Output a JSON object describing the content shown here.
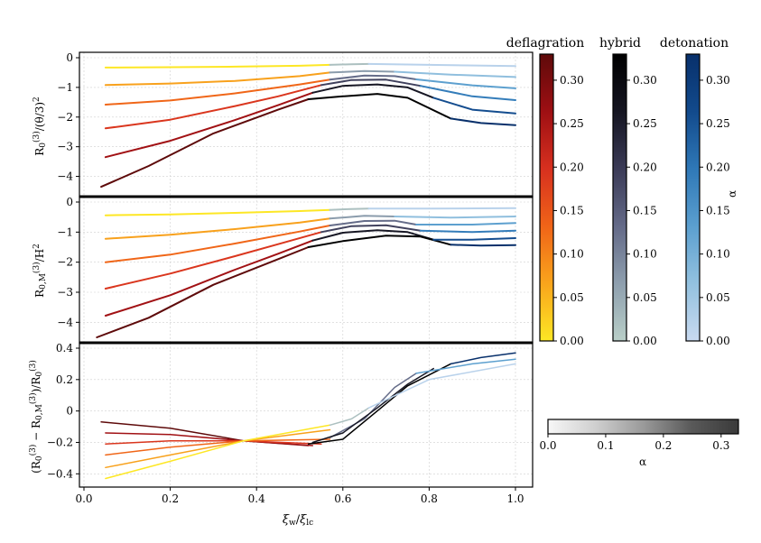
{
  "chart_data": [
    {
      "type": "line",
      "panel": "top",
      "ylabel": "R_0^(3)/(θ/3)^2",
      "xlim": [
        0.0,
        1.0
      ],
      "ylim": [
        -4.5,
        0.0
      ],
      "yticks": [
        0,
        -1,
        -2,
        -3,
        -4
      ],
      "grid": true,
      "series": [
        {
          "regime": "deflagration",
          "alpha": 0.0,
          "x": [
            0.05,
            0.2,
            0.35,
            0.5,
            0.57
          ],
          "y": [
            -0.33,
            -0.32,
            -0.3,
            -0.27,
            -0.24
          ]
        },
        {
          "regime": "deflagration",
          "alpha": 0.07,
          "x": [
            0.05,
            0.2,
            0.35,
            0.5,
            0.57
          ],
          "y": [
            -0.92,
            -0.87,
            -0.78,
            -0.62,
            -0.5
          ]
        },
        {
          "regime": "deflagration",
          "alpha": 0.13,
          "x": [
            0.05,
            0.2,
            0.35,
            0.5,
            0.57
          ],
          "y": [
            -1.58,
            -1.44,
            -1.2,
            -0.9,
            -0.74
          ]
        },
        {
          "regime": "deflagration",
          "alpha": 0.19,
          "x": [
            0.05,
            0.2,
            0.35,
            0.45,
            0.55
          ],
          "y": [
            -2.38,
            -2.09,
            -1.63,
            -1.3,
            -0.92
          ]
        },
        {
          "regime": "deflagration",
          "alpha": 0.26,
          "x": [
            0.05,
            0.2,
            0.35,
            0.45,
            0.53
          ],
          "y": [
            -3.35,
            -2.8,
            -2.1,
            -1.6,
            -1.18
          ]
        },
        {
          "regime": "deflagration",
          "alpha": 0.33,
          "x": [
            0.04,
            0.15,
            0.3,
            0.45,
            0.52
          ],
          "y": [
            -4.35,
            -3.65,
            -2.55,
            -1.75,
            -1.4
          ]
        },
        {
          "regime": "hybrid",
          "alpha": 0.02,
          "x": [
            0.57,
            0.62,
            0.66
          ],
          "y": [
            -0.24,
            -0.22,
            -0.21
          ]
        },
        {
          "regime": "hybrid",
          "alpha": 0.07,
          "x": [
            0.57,
            0.65,
            0.72
          ],
          "y": [
            -0.5,
            -0.45,
            -0.47
          ]
        },
        {
          "regime": "hybrid",
          "alpha": 0.13,
          "x": [
            0.57,
            0.65,
            0.72,
            0.77
          ],
          "y": [
            -0.74,
            -0.6,
            -0.62,
            -0.73
          ]
        },
        {
          "regime": "hybrid",
          "alpha": 0.19,
          "x": [
            0.55,
            0.62,
            0.7,
            0.78
          ],
          "y": [
            -0.92,
            -0.75,
            -0.74,
            -0.95
          ]
        },
        {
          "regime": "hybrid",
          "alpha": 0.26,
          "x": [
            0.53,
            0.6,
            0.68,
            0.75,
            0.81
          ],
          "y": [
            -1.18,
            -0.95,
            -0.9,
            -1.0,
            -1.35
          ]
        },
        {
          "regime": "hybrid",
          "alpha": 0.33,
          "x": [
            0.52,
            0.6,
            0.68,
            0.75,
            0.85
          ],
          "y": [
            -1.4,
            -1.3,
            -1.22,
            -1.35,
            -2.05
          ]
        },
        {
          "regime": "detonation",
          "alpha": 0.02,
          "x": [
            0.66,
            0.8,
            1.0
          ],
          "y": [
            -0.21,
            -0.24,
            -0.28
          ]
        },
        {
          "regime": "detonation",
          "alpha": 0.07,
          "x": [
            0.72,
            0.85,
            1.0
          ],
          "y": [
            -0.47,
            -0.57,
            -0.65
          ]
        },
        {
          "regime": "detonation",
          "alpha": 0.13,
          "x": [
            0.77,
            0.9,
            1.0
          ],
          "y": [
            -0.73,
            -0.93,
            -1.03
          ]
        },
        {
          "regime": "detonation",
          "alpha": 0.19,
          "x": [
            0.78,
            0.9,
            1.0
          ],
          "y": [
            -0.95,
            -1.3,
            -1.43
          ]
        },
        {
          "regime": "detonation",
          "alpha": 0.26,
          "x": [
            0.81,
            0.9,
            1.0
          ],
          "y": [
            -1.35,
            -1.75,
            -1.88
          ]
        },
        {
          "regime": "detonation",
          "alpha": 0.33,
          "x": [
            0.85,
            0.92,
            1.0
          ],
          "y": [
            -2.05,
            -2.2,
            -2.27
          ]
        }
      ]
    },
    {
      "type": "line",
      "panel": "middle",
      "ylabel": "R_0,M^(3)/H^2",
      "xlim": [
        0.0,
        1.0
      ],
      "ylim": [
        -4.5,
        0.0
      ],
      "yticks": [
        0,
        -1,
        -2,
        -3,
        -4
      ],
      "grid": true,
      "series": [
        {
          "regime": "deflagration",
          "alpha": 0.0,
          "x": [
            0.05,
            0.2,
            0.35,
            0.5,
            0.57
          ],
          "y": [
            -0.44,
            -0.41,
            -0.36,
            -0.3,
            -0.26
          ]
        },
        {
          "regime": "deflagration",
          "alpha": 0.07,
          "x": [
            0.05,
            0.2,
            0.35,
            0.5,
            0.57
          ],
          "y": [
            -1.22,
            -1.09,
            -0.9,
            -0.68,
            -0.55
          ]
        },
        {
          "regime": "deflagration",
          "alpha": 0.13,
          "x": [
            0.05,
            0.2,
            0.35,
            0.5,
            0.57
          ],
          "y": [
            -2.0,
            -1.75,
            -1.38,
            -0.98,
            -0.78
          ]
        },
        {
          "regime": "deflagration",
          "alpha": 0.19,
          "x": [
            0.05,
            0.2,
            0.35,
            0.45,
            0.55
          ],
          "y": [
            -2.88,
            -2.38,
            -1.8,
            -1.4,
            -1.0
          ]
        },
        {
          "regime": "deflagration",
          "alpha": 0.26,
          "x": [
            0.05,
            0.2,
            0.35,
            0.45,
            0.53
          ],
          "y": [
            -3.78,
            -3.1,
            -2.25,
            -1.72,
            -1.28
          ]
        },
        {
          "regime": "deflagration",
          "alpha": 0.33,
          "x": [
            0.03,
            0.15,
            0.3,
            0.45,
            0.52
          ],
          "y": [
            -4.5,
            -3.85,
            -2.75,
            -1.9,
            -1.5
          ]
        },
        {
          "regime": "hybrid",
          "alpha": 0.02,
          "x": [
            0.57,
            0.62,
            0.66
          ],
          "y": [
            -0.26,
            -0.23,
            -0.22
          ]
        },
        {
          "regime": "hybrid",
          "alpha": 0.07,
          "x": [
            0.57,
            0.65,
            0.72
          ],
          "y": [
            -0.55,
            -0.46,
            -0.48
          ]
        },
        {
          "regime": "hybrid",
          "alpha": 0.13,
          "x": [
            0.57,
            0.65,
            0.72,
            0.77
          ],
          "y": [
            -0.78,
            -0.63,
            -0.62,
            -0.75
          ]
        },
        {
          "regime": "hybrid",
          "alpha": 0.19,
          "x": [
            0.55,
            0.62,
            0.7,
            0.78
          ],
          "y": [
            -1.0,
            -0.8,
            -0.77,
            -0.95
          ]
        },
        {
          "regime": "hybrid",
          "alpha": 0.26,
          "x": [
            0.53,
            0.6,
            0.68,
            0.75,
            0.81
          ],
          "y": [
            -1.28,
            -1.02,
            -0.94,
            -1.0,
            -1.25
          ]
        },
        {
          "regime": "hybrid",
          "alpha": 0.33,
          "x": [
            0.52,
            0.6,
            0.7,
            0.78,
            0.85
          ],
          "y": [
            -1.5,
            -1.3,
            -1.12,
            -1.15,
            -1.42
          ]
        },
        {
          "regime": "detonation",
          "alpha": 0.02,
          "x": [
            0.66,
            0.8,
            1.0
          ],
          "y": [
            -0.22,
            -0.22,
            -0.2
          ]
        },
        {
          "regime": "detonation",
          "alpha": 0.07,
          "x": [
            0.72,
            0.85,
            1.0
          ],
          "y": [
            -0.48,
            -0.52,
            -0.48
          ]
        },
        {
          "regime": "detonation",
          "alpha": 0.13,
          "x": [
            0.77,
            0.9,
            1.0
          ],
          "y": [
            -0.75,
            -0.75,
            -0.7
          ]
        },
        {
          "regime": "detonation",
          "alpha": 0.19,
          "x": [
            0.78,
            0.9,
            1.0
          ],
          "y": [
            -0.95,
            -1.0,
            -0.95
          ]
        },
        {
          "regime": "detonation",
          "alpha": 0.26,
          "x": [
            0.81,
            0.9,
            1.0
          ],
          "y": [
            -1.25,
            -1.25,
            -1.2
          ]
        },
        {
          "regime": "detonation",
          "alpha": 0.33,
          "x": [
            0.85,
            0.92,
            1.0
          ],
          "y": [
            -1.42,
            -1.45,
            -1.43
          ]
        }
      ]
    },
    {
      "type": "line",
      "panel": "bottom",
      "ylabel": "(R_0^(3) - R_0,M^(3))/R_0^(3)",
      "xlabel": "ξ_w/ξ_lc",
      "xlim": [
        0.0,
        1.0
      ],
      "ylim": [
        -0.45,
        0.4
      ],
      "yticks": [
        0.4,
        0.2,
        0.0,
        -0.2,
        -0.4
      ],
      "xticks": [
        0.0,
        0.2,
        0.4,
        0.6,
        0.8,
        1.0
      ],
      "grid": true,
      "series": [
        {
          "regime": "deflagration",
          "alpha": 0.33,
          "x": [
            0.04,
            0.2,
            0.37,
            0.52
          ],
          "y": [
            -0.07,
            -0.11,
            -0.19,
            -0.22
          ]
        },
        {
          "regime": "deflagration",
          "alpha": 0.26,
          "x": [
            0.05,
            0.2,
            0.37,
            0.53
          ],
          "y": [
            -0.14,
            -0.15,
            -0.19,
            -0.22
          ]
        },
        {
          "regime": "deflagration",
          "alpha": 0.19,
          "x": [
            0.05,
            0.2,
            0.37,
            0.55
          ],
          "y": [
            -0.21,
            -0.19,
            -0.19,
            -0.21
          ]
        },
        {
          "regime": "deflagration",
          "alpha": 0.13,
          "x": [
            0.05,
            0.2,
            0.37,
            0.57
          ],
          "y": [
            -0.28,
            -0.23,
            -0.19,
            -0.18
          ]
        },
        {
          "regime": "deflagration",
          "alpha": 0.07,
          "x": [
            0.05,
            0.2,
            0.37,
            0.57
          ],
          "y": [
            -0.36,
            -0.28,
            -0.19,
            -0.12
          ]
        },
        {
          "regime": "deflagration",
          "alpha": 0.0,
          "x": [
            0.05,
            0.2,
            0.37,
            0.57
          ],
          "y": [
            -0.43,
            -0.32,
            -0.19,
            -0.09
          ]
        },
        {
          "regime": "hybrid",
          "alpha": 0.02,
          "x": [
            0.57,
            0.62,
            0.66
          ],
          "y": [
            -0.09,
            -0.05,
            0.02
          ]
        },
        {
          "regime": "hybrid",
          "alpha": 0.13,
          "x": [
            0.57,
            0.65,
            0.72,
            0.77
          ],
          "y": [
            -0.17,
            -0.05,
            0.15,
            0.24
          ]
        },
        {
          "regime": "hybrid",
          "alpha": 0.26,
          "x": [
            0.53,
            0.6,
            0.68,
            0.75,
            0.81
          ],
          "y": [
            -0.2,
            -0.14,
            0.02,
            0.17,
            0.27
          ]
        },
        {
          "regime": "hybrid",
          "alpha": 0.33,
          "x": [
            0.52,
            0.6,
            0.68,
            0.75,
            0.85
          ],
          "y": [
            -0.21,
            -0.18,
            0.0,
            0.16,
            0.3
          ]
        },
        {
          "regime": "detonation",
          "alpha": 0.02,
          "x": [
            0.66,
            0.8,
            1.0
          ],
          "y": [
            0.02,
            0.2,
            0.3
          ]
        },
        {
          "regime": "detonation",
          "alpha": 0.13,
          "x": [
            0.77,
            0.9,
            1.0
          ],
          "y": [
            0.24,
            0.3,
            0.33
          ]
        },
        {
          "regime": "detonation",
          "alpha": 0.33,
          "x": [
            0.85,
            0.92,
            1.0
          ],
          "y": [
            0.3,
            0.34,
            0.37
          ]
        }
      ]
    }
  ],
  "colorbars": {
    "deflagration": {
      "label": "deflagration",
      "ticks": [
        "0.30",
        "0.25",
        "0.20",
        "0.15",
        "0.10",
        "0.05",
        "0.00"
      ],
      "stops": [
        "#fde725",
        "#f9a51c",
        "#f06418",
        "#d7301f",
        "#9e0f13",
        "#5e0a0a"
      ]
    },
    "hybrid": {
      "label": "hybrid",
      "ticks": [
        "0.30",
        "0.25",
        "0.20",
        "0.15",
        "0.10",
        "0.05",
        "0.00"
      ],
      "stops": [
        "#b9cfc8",
        "#8e9fae",
        "#646a88",
        "#3b3b57",
        "#151521",
        "#000000"
      ]
    },
    "detonation": {
      "label": "detonation",
      "ticks": [
        "0.30",
        "0.25",
        "0.20",
        "0.15",
        "0.10",
        "0.05",
        "0.00"
      ],
      "stops": [
        "#c9daf0",
        "#93c1df",
        "#5b9fcf",
        "#2f78b7",
        "#124a8c",
        "#08306b"
      ]
    },
    "alpha": {
      "label": "α",
      "ticks": [
        "0.0",
        "0.1",
        "0.2",
        "0.3"
      ],
      "stops": [
        "#f7f7f7",
        "#cfcfcf",
        "#9a9a9a",
        "#5a5a5a",
        "#3a3a3a"
      ]
    },
    "vertical_alpha_label": "α"
  }
}
